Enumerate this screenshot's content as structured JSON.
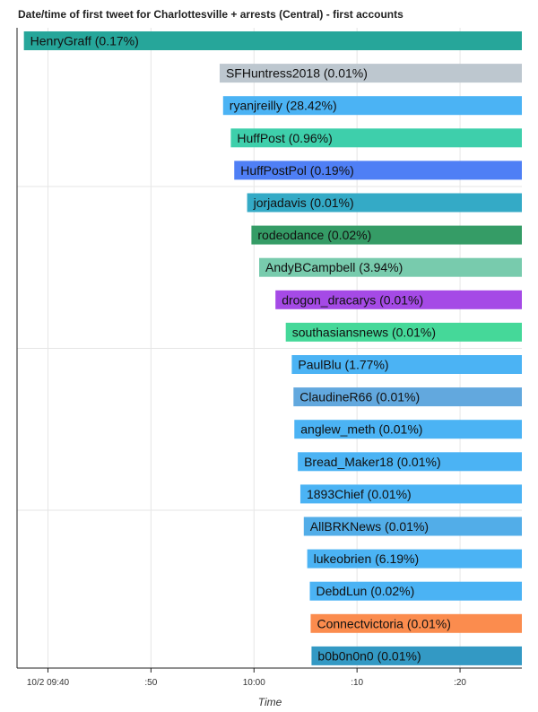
{
  "chart_data": {
    "type": "bar",
    "title": "Date/time of first tweet for Charlottesville + arrests (Central) - first accounts",
    "xlabel": "Time",
    "ylabel": "",
    "x_axis": {
      "type": "time",
      "domain": [
        "2017-10-02T09:37:00",
        "2017-10-02T10:26:00"
      ],
      "ticks": [
        {
          "value": "2017-10-02T09:40:00",
          "label": "10/2 09:40"
        },
        {
          "value": "2017-10-02T09:50:00",
          "label": ":50"
        },
        {
          "value": "2017-10-02T10:00:00",
          "label": "10:00"
        },
        {
          "value": "2017-10-02T10:10:00",
          "label": ":10"
        },
        {
          "value": "2017-10-02T10:20:00",
          "label": ":20"
        }
      ]
    },
    "grid": true,
    "series": [
      {
        "label": "HenryGraff (0.17%)",
        "start": "2017-10-02T09:37:40",
        "color": "#26a69a"
      },
      {
        "label": "SFHuntress2018 (0.01%)",
        "start": "2017-10-02T09:56:40",
        "color": "#bdc7cf"
      },
      {
        "label": "ryanjreilly (28.42%)",
        "start": "2017-10-02T09:57:00",
        "color": "#4bb3f4"
      },
      {
        "label": "HuffPost (0.96%)",
        "start": "2017-10-02T09:57:45",
        "color": "#3ecfab"
      },
      {
        "label": "HuffPostPol (0.19%)",
        "start": "2017-10-02T09:58:05",
        "color": "#4f7ff5"
      },
      {
        "label": "jorjadavis (0.01%)",
        "start": "2017-10-02T09:59:20",
        "color": "#34aac6"
      },
      {
        "label": "rodeodance (0.02%)",
        "start": "2017-10-02T09:59:45",
        "color": "#359c66"
      },
      {
        "label": "AndyBCampbell (3.94%)",
        "start": "2017-10-02T10:00:30",
        "color": "#78cbad"
      },
      {
        "label": "drogon_dracarys (0.01%)",
        "start": "2017-10-02T10:02:05",
        "color": "#a54ae6"
      },
      {
        "label": "southasiansnews (0.01%)",
        "start": "2017-10-02T10:03:05",
        "color": "#45d899"
      },
      {
        "label": "PaulBlu (1.77%)",
        "start": "2017-10-02T10:03:40",
        "color": "#4bb3f4"
      },
      {
        "label": "ClaudineR66 (0.01%)",
        "start": "2017-10-02T10:03:50",
        "color": "#62a8de"
      },
      {
        "label": "anglew_meth (0.01%)",
        "start": "2017-10-02T10:03:55",
        "color": "#4bb3f4"
      },
      {
        "label": "Bread_Maker18 (0.01%)",
        "start": "2017-10-02T10:04:15",
        "color": "#4bb3f4"
      },
      {
        "label": "1893Chief (0.01%)",
        "start": "2017-10-02T10:04:30",
        "color": "#4bb3f4"
      },
      {
        "label": "AllBRKNews (0.01%)",
        "start": "2017-10-02T10:04:50",
        "color": "#52ade8"
      },
      {
        "label": "lukeobrien (6.19%)",
        "start": "2017-10-02T10:05:10",
        "color": "#4bb3f4"
      },
      {
        "label": "DebdLun (0.02%)",
        "start": "2017-10-02T10:05:25",
        "color": "#4bb3f4"
      },
      {
        "label": "Connectvictoria (0.01%)",
        "start": "2017-10-02T10:05:30",
        "color": "#fb8c4e"
      },
      {
        "label": "b0b0n0n0 (0.01%)",
        "start": "2017-10-02T10:05:35",
        "color": "#3399c4"
      }
    ]
  }
}
